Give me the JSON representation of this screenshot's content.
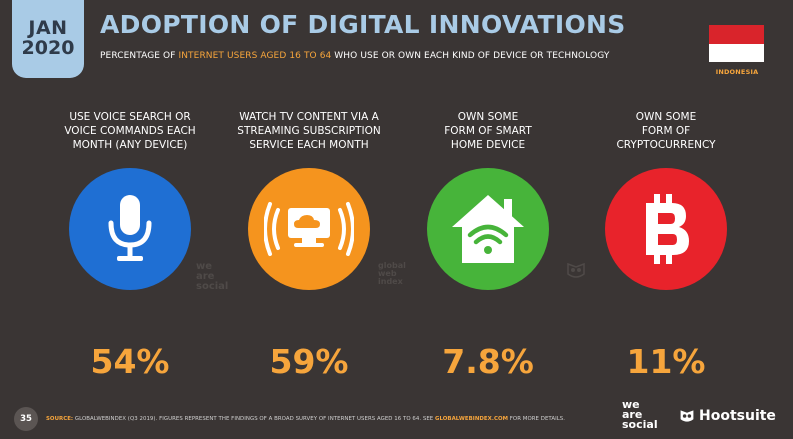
{
  "badge": {
    "month": "JAN",
    "year": "2020"
  },
  "title": "ADOPTION OF DIGITAL INNOVATIONS",
  "subtitle": {
    "part1": "PERCENTAGE OF ",
    "highlight": "INTERNET USERS AGED 16 TO 64",
    "part2": " WHO USE OR OWN EACH KIND OF DEVICE OR TECHNOLOGY"
  },
  "country": "INDONESIA",
  "colors": {
    "accent": "#f6a53c",
    "title": "#a9cbe6",
    "background": "#3a3534",
    "blue": "#1f6fd3",
    "orange": "#f5941e",
    "green": "#47b43a",
    "red": "#e8232b"
  },
  "metrics": [
    {
      "label": "USE VOICE SEARCH OR\nVOICE COMMANDS EACH\nMONTH (ANY DEVICE)",
      "value": "54%",
      "icon": "microphone-icon",
      "color": "#1f6fd3"
    },
    {
      "label": "WATCH TV CONTENT VIA A\nSTREAMING SUBSCRIPTION\nSERVICE EACH MONTH",
      "value": "59%",
      "icon": "streaming-tv-icon",
      "color": "#f5941e"
    },
    {
      "label": "OWN SOME\nFORM OF SMART\nHOME DEVICE",
      "value": "7.8%",
      "icon": "smart-home-icon",
      "color": "#47b43a"
    },
    {
      "label": "OWN SOME\nFORM OF\nCRYPTOCURRENCY",
      "value": "11%",
      "icon": "bitcoin-icon",
      "color": "#e8232b"
    }
  ],
  "watermarks": {
    "wearesocial": [
      "we",
      "are",
      "social"
    ],
    "gwi": [
      "global",
      "web",
      "index"
    ]
  },
  "footer": {
    "page": "35",
    "source_label": "SOURCE:",
    "source_text": " GLOBALWEBINDEX (Q3 2019). FIGURES REPRESENT THE FINDINGS OF A BROAD SURVEY OF INTERNET USERS AGED 16 TO 64. SEE ",
    "link": "GLOBALWEBINDEX.COM",
    "after": " FOR MORE DETAILS."
  },
  "logos": {
    "wearesocial": [
      "we",
      "are",
      "social"
    ],
    "hootsuite": "Hootsuite"
  }
}
